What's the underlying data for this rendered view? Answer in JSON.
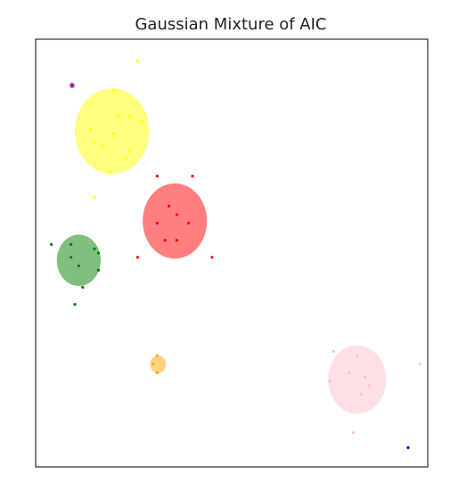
{
  "chart_data": {
    "type": "scatter",
    "title": "Gaussian Mixture of AIC",
    "xlabel": "",
    "ylabel": "",
    "xlim": [
      0,
      100
    ],
    "ylim": [
      0,
      100
    ],
    "grid": false,
    "axis_ticks": false,
    "ellipse_alpha": 0.5,
    "components": [
      {
        "color": "#ffff00",
        "ellipse": {
          "cx": 19.5,
          "cy": 78.5,
          "rx": 9.5,
          "ry": 10.0
        },
        "points": [
          [
            26,
            95
          ],
          [
            15,
            76
          ],
          [
            17,
            75
          ],
          [
            14,
            79
          ],
          [
            21,
            82
          ],
          [
            24,
            82
          ],
          [
            20,
            78
          ],
          [
            27,
            81
          ],
          [
            23,
            72
          ],
          [
            24,
            74
          ],
          [
            19,
            69
          ],
          [
            20,
            88
          ],
          [
            15,
            63
          ]
        ]
      },
      {
        "color": "#ff0000",
        "ellipse": {
          "cx": 35.5,
          "cy": 57.5,
          "rx": 8.2,
          "ry": 8.8
        },
        "points": [
          [
            31,
            68
          ],
          [
            40,
            68
          ],
          [
            34,
            61
          ],
          [
            36,
            59
          ],
          [
            39,
            57
          ],
          [
            31,
            57
          ],
          [
            33,
            53
          ],
          [
            36,
            53
          ],
          [
            26,
            49
          ],
          [
            45,
            49
          ]
        ]
      },
      {
        "color": "#008000",
        "ellipse": {
          "cx": 11.0,
          "cy": 48.3,
          "rx": 5.6,
          "ry": 6.0
        },
        "points": [
          [
            4,
            52
          ],
          [
            9,
            52
          ],
          [
            15,
            51
          ],
          [
            16,
            50
          ],
          [
            9,
            49
          ],
          [
            11,
            47
          ],
          [
            16,
            46
          ],
          [
            12,
            42
          ],
          [
            10,
            38
          ]
        ]
      },
      {
        "color": "#ffa500",
        "ellipse": {
          "cx": 31.2,
          "cy": 24.0,
          "rx": 2.0,
          "ry": 2.1
        },
        "points": [
          [
            31,
            26
          ],
          [
            31,
            22
          ],
          [
            30,
            24
          ]
        ]
      },
      {
        "color": "#ffc0cb",
        "ellipse": {
          "cx": 82.0,
          "cy": 20.4,
          "rx": 7.4,
          "ry": 8.0
        },
        "points": [
          [
            76,
            27
          ],
          [
            82,
            26
          ],
          [
            98,
            24
          ],
          [
            80,
            22
          ],
          [
            84,
            21
          ],
          [
            85,
            19
          ],
          [
            83,
            17
          ],
          [
            75,
            20
          ],
          [
            81,
            8
          ]
        ]
      },
      {
        "color": "#800080",
        "ellipse": {
          "cx": 9.3,
          "cy": 89.2,
          "rx": 0.7,
          "ry": 0.7
        },
        "points": [
          [
            9.3,
            89.2
          ]
        ]
      },
      {
        "color": "#0000ff",
        "ellipse": null,
        "points": [
          [
            95,
            4.5
          ]
        ]
      }
    ]
  }
}
